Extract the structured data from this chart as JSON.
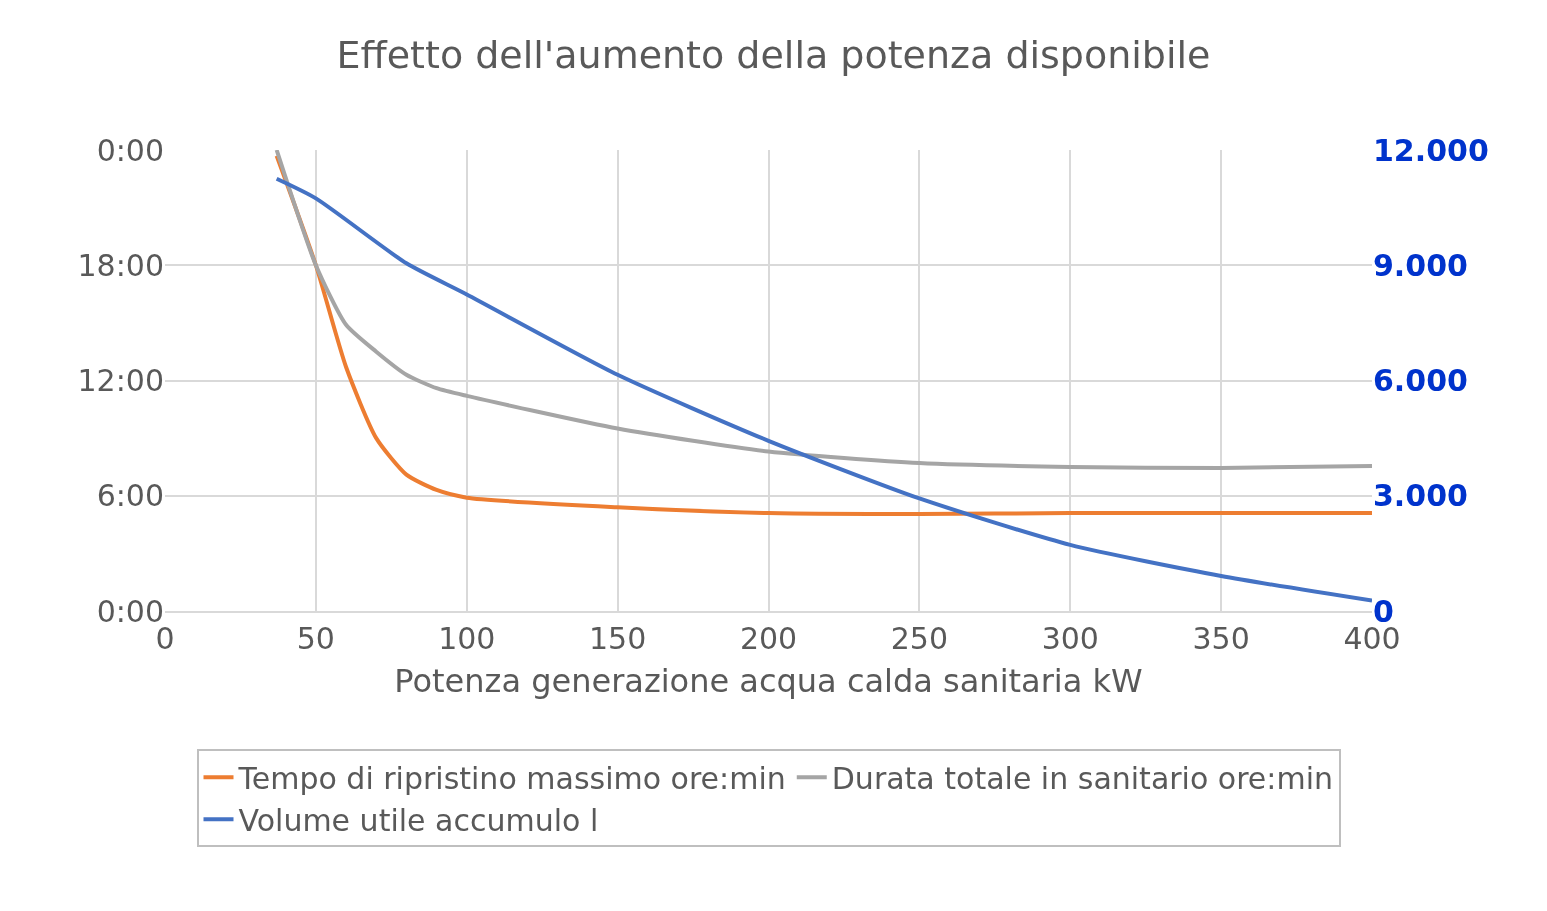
{
  "chart_data": {
    "type": "line",
    "title": "Effetto dell'aumento della potenza disponibile",
    "xlabel": "Potenza generazione acqua calda sanitaria kW",
    "xlim": [
      0,
      400
    ],
    "xticks": [
      0,
      50,
      100,
      150,
      200,
      250,
      300,
      350,
      400
    ],
    "ylim": [
      0,
      24
    ],
    "yticks": [
      {
        "value": 0,
        "label": "0:00"
      },
      {
        "value": 6,
        "label": "6:00"
      },
      {
        "value": 12,
        "label": "12:00"
      },
      {
        "value": 18,
        "label": "18:00"
      },
      {
        "value": 24,
        "label": "0:00"
      }
    ],
    "y2lim": [
      0,
      12000
    ],
    "y2ticks": [
      {
        "value": 0,
        "label": "0"
      },
      {
        "value": 3000,
        "label": "3.000"
      },
      {
        "value": 6000,
        "label": "6.000"
      },
      {
        "value": 9000,
        "label": "9.000"
      },
      {
        "value": 12000,
        "label": "12.000"
      }
    ],
    "grid": true,
    "legend": "bottom",
    "marker": "none",
    "line_style": "solid",
    "series": [
      {
        "name": "Tempo di ripristino massimo ore:min",
        "color": "#ed7d31",
        "x": [
          37,
          50,
          60,
          70,
          80,
          90,
          100,
          150,
          200,
          250,
          300,
          350,
          400
        ],
        "values": [
          23.7,
          18,
          12.7,
          9.0,
          7.1,
          6.3,
          5.9,
          5.4,
          5.1,
          5.05,
          5.1,
          5.1,
          5.1
        ]
      },
      {
        "name": "Durata totale in sanitario ore:min",
        "color": "#a5a5a5",
        "x": [
          37,
          50,
          60,
          70,
          80,
          90,
          100,
          150,
          200,
          250,
          300,
          350,
          400
        ],
        "values": [
          24,
          18,
          14.9,
          13.5,
          12.3,
          11.6,
          11.2,
          9.5,
          8.3,
          7.7,
          7.5,
          7.45,
          7.55
        ]
      },
      {
        "name": "Volume utile accumulo l",
        "color": "#4472c4",
        "axis": "y2",
        "x": [
          37,
          50,
          80,
          100,
          150,
          200,
          250,
          300,
          350,
          400
        ],
        "values": [
          11250,
          10740,
          9050,
          8240,
          6150,
          4430,
          2930,
          1720,
          910,
          270
        ]
      }
    ]
  }
}
